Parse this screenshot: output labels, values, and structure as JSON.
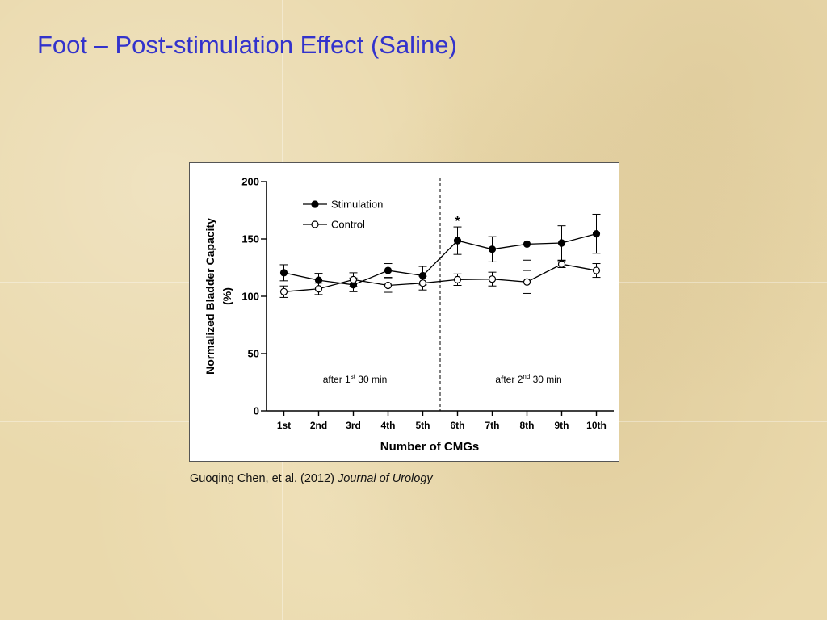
{
  "slide": {
    "title": "Foot – Post-stimulation Effect (Saline)"
  },
  "citation": {
    "authors": "Guoqing Chen, et al. (2012)",
    "journal": "Journal of Urology"
  },
  "colors": {
    "title": "#3333cc",
    "background": "#ead9ac"
  },
  "chart_data": {
    "type": "line",
    "categories": [
      "1st",
      "2nd",
      "3rd",
      "4th",
      "5th",
      "6th",
      "7th",
      "8th",
      "9th",
      "10th"
    ],
    "xlabel": "Number of CMGs",
    "ylabel_line1": "Normalized Bladder Capacity",
    "ylabel_line2": "(%)",
    "ylim": [
      0,
      200
    ],
    "yticks": [
      "0",
      "50",
      "100",
      "150",
      "200"
    ],
    "legend_placement": "top-left",
    "series": [
      {
        "name": "Stimulation",
        "marker": "filled-circle",
        "values": [
          120.5,
          114,
          110,
          122.5,
          118,
          148.5,
          141,
          145.5,
          146.5,
          154.5
        ],
        "errors": [
          7,
          6,
          6,
          6,
          8,
          12,
          11,
          14,
          15,
          17
        ]
      },
      {
        "name": "Control",
        "marker": "open-circle",
        "values": [
          104,
          106.5,
          114.5,
          109.5,
          111.5,
          114.5,
          115,
          112.5,
          128,
          122.5
        ],
        "errors": [
          5,
          5,
          6,
          6,
          6,
          5,
          6,
          10,
          3,
          6
        ]
      }
    ],
    "annotations": {
      "significance_marker": "*",
      "significance_category": "6th",
      "phase_divider_after": "5th",
      "phase1_label": {
        "before": "after 1",
        "sup": "st",
        "after": " 30 min"
      },
      "phase2_label": {
        "before": "after 2",
        "sup": "nd",
        "after": " 30 min"
      }
    }
  }
}
